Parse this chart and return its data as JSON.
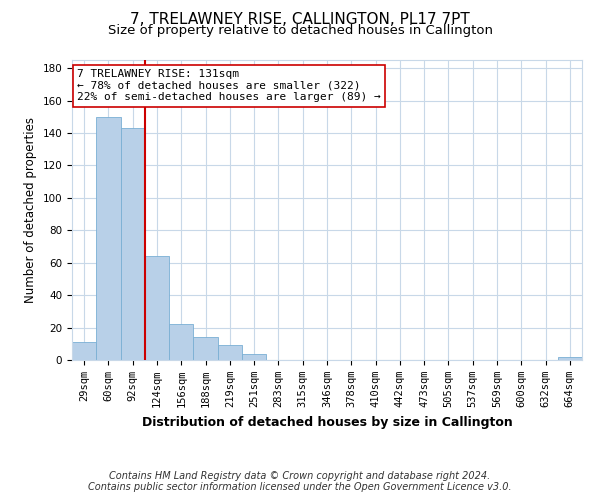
{
  "title": "7, TRELAWNEY RISE, CALLINGTON, PL17 7PT",
  "subtitle": "Size of property relative to detached houses in Callington",
  "xlabel": "Distribution of detached houses by size in Callington",
  "ylabel": "Number of detached properties",
  "bin_labels": [
    "29sqm",
    "60sqm",
    "92sqm",
    "124sqm",
    "156sqm",
    "188sqm",
    "219sqm",
    "251sqm",
    "283sqm",
    "315sqm",
    "346sqm",
    "378sqm",
    "410sqm",
    "442sqm",
    "473sqm",
    "505sqm",
    "537sqm",
    "569sqm",
    "600sqm",
    "632sqm",
    "664sqm"
  ],
  "bar_values": [
    11,
    150,
    143,
    64,
    22,
    14,
    9,
    4,
    0,
    0,
    0,
    0,
    0,
    0,
    0,
    0,
    0,
    0,
    0,
    0,
    2
  ],
  "bar_color": "#b8d0e8",
  "bar_edge_color": "#7aafd4",
  "vline_color": "#cc0000",
  "annotation_text": "7 TRELAWNEY RISE: 131sqm\n← 78% of detached houses are smaller (322)\n22% of semi-detached houses are larger (89) →",
  "annotation_box_facecolor": "#ffffff",
  "annotation_box_edgecolor": "#cc0000",
  "ylim": [
    0,
    185
  ],
  "yticks": [
    0,
    20,
    40,
    60,
    80,
    100,
    120,
    140,
    160,
    180
  ],
  "footer_line1": "Contains HM Land Registry data © Crown copyright and database right 2024.",
  "footer_line2": "Contains public sector information licensed under the Open Government Licence v3.0.",
  "background_color": "#ffffff",
  "grid_color": "#c8d8e8",
  "title_fontsize": 11,
  "subtitle_fontsize": 9.5,
  "xlabel_fontsize": 9,
  "ylabel_fontsize": 8.5,
  "tick_fontsize": 7.5,
  "annotation_fontsize": 8,
  "footer_fontsize": 7
}
